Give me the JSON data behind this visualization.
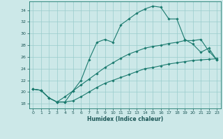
{
  "title": "",
  "xlabel": "Humidex (Indice chaleur)",
  "background_color": "#cce8e8",
  "line_color": "#1a7a6e",
  "grid_color": "#99cccc",
  "x_ticks": [
    0,
    1,
    2,
    3,
    4,
    5,
    6,
    7,
    8,
    9,
    10,
    11,
    12,
    13,
    14,
    15,
    16,
    17,
    18,
    19,
    20,
    21,
    22,
    23
  ],
  "y_ticks": [
    18,
    20,
    22,
    24,
    26,
    28,
    30,
    32,
    34
  ],
  "ylim": [
    17.2,
    35.5
  ],
  "xlim": [
    -0.5,
    23.5
  ],
  "series": [
    {
      "x": [
        0,
        1,
        2,
        3,
        4,
        5,
        6,
        7,
        8,
        9,
        10,
        11,
        12,
        13,
        14,
        15,
        16,
        17,
        18,
        19,
        20,
        21,
        22,
        23
      ],
      "y": [
        20.5,
        20.3,
        19.0,
        18.3,
        18.3,
        20.2,
        22.0,
        25.5,
        28.5,
        29.0,
        28.5,
        31.5,
        32.5,
        33.5,
        34.2,
        34.7,
        34.5,
        32.5,
        32.5,
        29.0,
        28.2,
        26.8,
        27.5,
        25.5
      ]
    },
    {
      "x": [
        0,
        1,
        2,
        3,
        4,
        5,
        6,
        7,
        8,
        9,
        10,
        11,
        12,
        13,
        14,
        15,
        16,
        17,
        18,
        19,
        20,
        21,
        22,
        23
      ],
      "y": [
        20.5,
        20.3,
        19.0,
        18.3,
        19.2,
        20.2,
        21.2,
        22.2,
        23.2,
        24.2,
        25.0,
        25.8,
        26.5,
        27.0,
        27.5,
        27.8,
        28.0,
        28.3,
        28.5,
        28.8,
        28.8,
        29.0,
        27.0,
        25.5
      ]
    },
    {
      "x": [
        0,
        1,
        2,
        3,
        4,
        5,
        6,
        7,
        8,
        9,
        10,
        11,
        12,
        13,
        14,
        15,
        16,
        17,
        18,
        19,
        20,
        21,
        22,
        23
      ],
      "y": [
        20.5,
        20.3,
        19.0,
        18.3,
        18.3,
        18.5,
        19.2,
        20.0,
        20.8,
        21.5,
        22.0,
        22.5,
        23.0,
        23.5,
        24.0,
        24.2,
        24.5,
        24.8,
        25.0,
        25.2,
        25.4,
        25.5,
        25.6,
        25.7
      ]
    }
  ]
}
